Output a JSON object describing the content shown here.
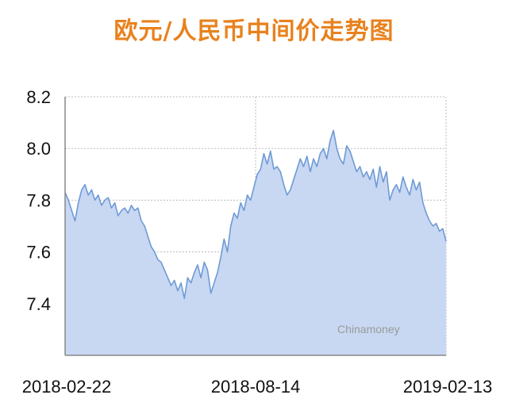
{
  "chart_data": {
    "type": "area",
    "title": "欧元/人民币中间价走势图",
    "watermark": "Chinamoney",
    "ylim": [
      7.2,
      8.2
    ],
    "yticks": [
      {
        "value": 7.4,
        "label": "7.4"
      },
      {
        "value": 7.6,
        "label": "7.6"
      },
      {
        "value": 7.8,
        "label": "7.8"
      },
      {
        "value": 8.0,
        "label": "8.0"
      },
      {
        "value": 8.2,
        "label": "8.2"
      }
    ],
    "xticks": [
      {
        "value": 0,
        "label": "2018-02-22"
      },
      {
        "value": 0.5,
        "label": "2018-08-14"
      },
      {
        "value": 1,
        "label": "2019-02-13"
      }
    ],
    "grid": true,
    "colors": {
      "line": "#6f9ad6",
      "fill": "#c8d8f2",
      "title": "#e8821e",
      "axis": "#888888",
      "grid": "#bbbbbb"
    },
    "series": [
      {
        "values": [
          7.83,
          7.8,
          7.76,
          7.72,
          7.79,
          7.84,
          7.86,
          7.82,
          7.84,
          7.8,
          7.82,
          7.78,
          7.8,
          7.81,
          7.77,
          7.79,
          7.74,
          7.76,
          7.77,
          7.75,
          7.78,
          7.76,
          7.77,
          7.72,
          7.7,
          7.66,
          7.62,
          7.6,
          7.57,
          7.56,
          7.53,
          7.5,
          7.47,
          7.49,
          7.45,
          7.48,
          7.42,
          7.5,
          7.48,
          7.52,
          7.55,
          7.5,
          7.56,
          7.53,
          7.44,
          7.48,
          7.52,
          7.58,
          7.65,
          7.6,
          7.7,
          7.75,
          7.73,
          7.79,
          7.76,
          7.82,
          7.8,
          7.85,
          7.9,
          7.92,
          7.98,
          7.94,
          7.99,
          7.92,
          7.93,
          7.91,
          7.86,
          7.82,
          7.84,
          7.88,
          7.92,
          7.96,
          7.93,
          7.97,
          7.91,
          7.96,
          7.93,
          7.98,
          8.0,
          7.96,
          8.03,
          8.07,
          8.0,
          7.96,
          7.94,
          8.01,
          7.99,
          7.95,
          7.91,
          7.93,
          7.89,
          7.91,
          7.88,
          7.92,
          7.85,
          7.93,
          7.87,
          7.91,
          7.8,
          7.84,
          7.86,
          7.83,
          7.89,
          7.85,
          7.82,
          7.88,
          7.84,
          7.87,
          7.79,
          7.75,
          7.72,
          7.7,
          7.71,
          7.68,
          7.69,
          7.64
        ]
      }
    ]
  }
}
